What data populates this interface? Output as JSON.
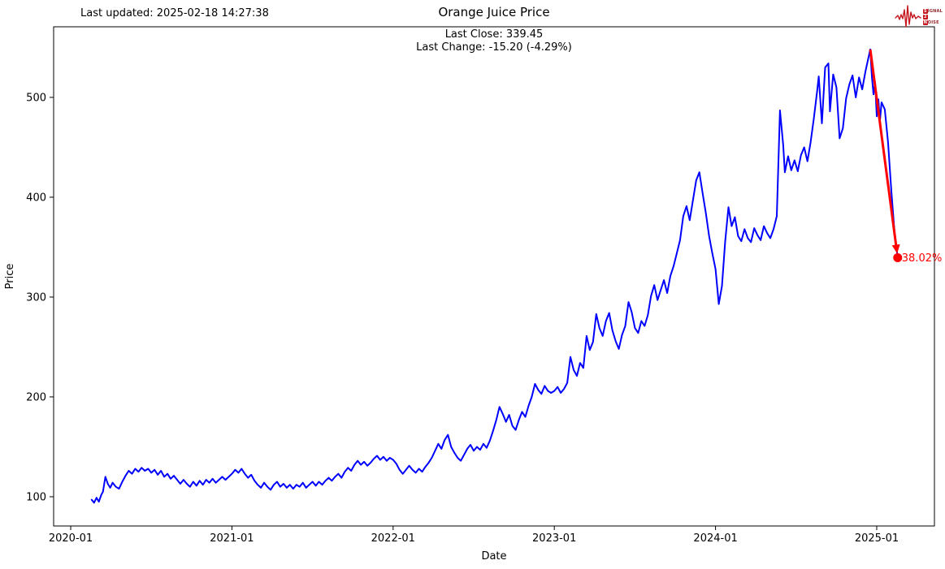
{
  "header": {
    "last_updated": "Last updated: 2025-02-18 14:27:38",
    "title": "Orange Juice  Price",
    "subtitle_line1": "Last Close: 339.45",
    "subtitle_line2": "Last Change: -15.20 (-4.29%)"
  },
  "logo": {
    "color": "#c4161c",
    "text_color": "#93282c",
    "rows": [
      {
        "boxed": "S",
        "rest": "IGNAL"
      },
      {
        "boxed": "2",
        "rest": ""
      },
      {
        "boxed": "N",
        "rest": "OISE"
      }
    ]
  },
  "chart_data": {
    "type": "line",
    "title": "Orange Juice  Price",
    "xlabel": "Date",
    "ylabel": "Price",
    "grid": false,
    "legend": "none",
    "xlim": [
      2019.894,
      2025.358
    ],
    "ylim": [
      70.7,
      570.7
    ],
    "x_ticks": [
      {
        "v": 2020.0,
        "label": "2020-01"
      },
      {
        "v": 2021.0,
        "label": "2021-01"
      },
      {
        "v": 2022.0,
        "label": "2022-01"
      },
      {
        "v": 2023.0,
        "label": "2023-01"
      },
      {
        "v": 2024.0,
        "label": "2024-01"
      },
      {
        "v": 2025.0,
        "label": "2025-01"
      }
    ],
    "y_ticks": [
      {
        "v": 100,
        "label": "100"
      },
      {
        "v": 200,
        "label": "200"
      },
      {
        "v": 300,
        "label": "300"
      },
      {
        "v": 400,
        "label": "400"
      },
      {
        "v": 500,
        "label": "500"
      }
    ],
    "line_color": "#0000ff",
    "last_close": 339.45,
    "last_change": -15.2,
    "last_change_pct": -4.29,
    "annotation": {
      "from": [
        2024.96,
        548
      ],
      "to": [
        2025.13,
        339.45
      ],
      "label": "38.02%",
      "color": "#ff0000"
    },
    "series": [
      {
        "name": "Price",
        "points": [
          [
            2020.13,
            97
          ],
          [
            2020.145,
            94
          ],
          [
            2020.16,
            99
          ],
          [
            2020.175,
            95
          ],
          [
            2020.19,
            102
          ],
          [
            2020.2,
            105
          ],
          [
            2020.215,
            120
          ],
          [
            2020.23,
            113
          ],
          [
            2020.245,
            109
          ],
          [
            2020.26,
            114
          ],
          [
            2020.28,
            110
          ],
          [
            2020.3,
            108
          ],
          [
            2020.32,
            115
          ],
          [
            2020.34,
            121
          ],
          [
            2020.36,
            126
          ],
          [
            2020.38,
            123
          ],
          [
            2020.4,
            128
          ],
          [
            2020.42,
            125
          ],
          [
            2020.44,
            129
          ],
          [
            2020.46,
            126
          ],
          [
            2020.48,
            128
          ],
          [
            2020.5,
            124
          ],
          [
            2020.52,
            127
          ],
          [
            2020.54,
            122
          ],
          [
            2020.56,
            126
          ],
          [
            2020.58,
            120
          ],
          [
            2020.6,
            123
          ],
          [
            2020.62,
            118
          ],
          [
            2020.64,
            121
          ],
          [
            2020.66,
            117
          ],
          [
            2020.68,
            113
          ],
          [
            2020.7,
            117
          ],
          [
            2020.72,
            113
          ],
          [
            2020.74,
            110
          ],
          [
            2020.76,
            115
          ],
          [
            2020.78,
            111
          ],
          [
            2020.8,
            116
          ],
          [
            2020.82,
            112
          ],
          [
            2020.84,
            117
          ],
          [
            2020.86,
            114
          ],
          [
            2020.88,
            118
          ],
          [
            2020.9,
            114
          ],
          [
            2020.92,
            117
          ],
          [
            2020.94,
            120
          ],
          [
            2020.96,
            117
          ],
          [
            2020.98,
            120
          ],
          [
            2021.0,
            123
          ],
          [
            2021.02,
            127
          ],
          [
            2021.04,
            124
          ],
          [
            2021.06,
            128
          ],
          [
            2021.08,
            123
          ],
          [
            2021.1,
            119
          ],
          [
            2021.12,
            122
          ],
          [
            2021.14,
            116
          ],
          [
            2021.16,
            112
          ],
          [
            2021.18,
            109
          ],
          [
            2021.2,
            114
          ],
          [
            2021.22,
            110
          ],
          [
            2021.24,
            107
          ],
          [
            2021.26,
            112
          ],
          [
            2021.28,
            115
          ],
          [
            2021.3,
            110
          ],
          [
            2021.32,
            113
          ],
          [
            2021.34,
            109
          ],
          [
            2021.36,
            112
          ],
          [
            2021.38,
            108
          ],
          [
            2021.4,
            112
          ],
          [
            2021.42,
            110
          ],
          [
            2021.44,
            114
          ],
          [
            2021.46,
            109
          ],
          [
            2021.48,
            112
          ],
          [
            2021.5,
            115
          ],
          [
            2021.52,
            111
          ],
          [
            2021.54,
            115
          ],
          [
            2021.56,
            112
          ],
          [
            2021.58,
            116
          ],
          [
            2021.6,
            119
          ],
          [
            2021.62,
            116
          ],
          [
            2021.64,
            120
          ],
          [
            2021.66,
            123
          ],
          [
            2021.68,
            119
          ],
          [
            2021.7,
            125
          ],
          [
            2021.72,
            129
          ],
          [
            2021.74,
            126
          ],
          [
            2021.76,
            132
          ],
          [
            2021.78,
            136
          ],
          [
            2021.8,
            132
          ],
          [
            2021.82,
            135
          ],
          [
            2021.84,
            131
          ],
          [
            2021.86,
            134
          ],
          [
            2021.88,
            138
          ],
          [
            2021.9,
            141
          ],
          [
            2021.92,
            137
          ],
          [
            2021.94,
            140
          ],
          [
            2021.96,
            136
          ],
          [
            2021.98,
            139
          ],
          [
            2022.0,
            137
          ],
          [
            2022.02,
            133
          ],
          [
            2022.04,
            127
          ],
          [
            2022.06,
            123
          ],
          [
            2022.08,
            127
          ],
          [
            2022.1,
            131
          ],
          [
            2022.12,
            127
          ],
          [
            2022.14,
            124
          ],
          [
            2022.16,
            128
          ],
          [
            2022.18,
            125
          ],
          [
            2022.2,
            130
          ],
          [
            2022.22,
            134
          ],
          [
            2022.24,
            139
          ],
          [
            2022.26,
            146
          ],
          [
            2022.28,
            153
          ],
          [
            2022.3,
            148
          ],
          [
            2022.32,
            157
          ],
          [
            2022.34,
            162
          ],
          [
            2022.36,
            150
          ],
          [
            2022.38,
            144
          ],
          [
            2022.4,
            139
          ],
          [
            2022.42,
            136
          ],
          [
            2022.44,
            142
          ],
          [
            2022.46,
            148
          ],
          [
            2022.48,
            152
          ],
          [
            2022.5,
            146
          ],
          [
            2022.52,
            150
          ],
          [
            2022.54,
            147
          ],
          [
            2022.56,
            153
          ],
          [
            2022.58,
            149
          ],
          [
            2022.6,
            156
          ],
          [
            2022.62,
            166
          ],
          [
            2022.64,
            177
          ],
          [
            2022.66,
            190
          ],
          [
            2022.68,
            183
          ],
          [
            2022.7,
            175
          ],
          [
            2022.72,
            182
          ],
          [
            2022.74,
            171
          ],
          [
            2022.76,
            167
          ],
          [
            2022.78,
            177
          ],
          [
            2022.8,
            185
          ],
          [
            2022.82,
            180
          ],
          [
            2022.84,
            191
          ],
          [
            2022.86,
            200
          ],
          [
            2022.88,
            213
          ],
          [
            2022.9,
            207
          ],
          [
            2022.92,
            203
          ],
          [
            2022.94,
            211
          ],
          [
            2022.96,
            206
          ],
          [
            2022.98,
            204
          ],
          [
            2023.0,
            206
          ],
          [
            2023.02,
            210
          ],
          [
            2023.04,
            204
          ],
          [
            2023.06,
            208
          ],
          [
            2023.08,
            214
          ],
          [
            2023.1,
            240
          ],
          [
            2023.12,
            227
          ],
          [
            2023.14,
            221
          ],
          [
            2023.16,
            234
          ],
          [
            2023.18,
            229
          ],
          [
            2023.2,
            261
          ],
          [
            2023.22,
            247
          ],
          [
            2023.24,
            255
          ],
          [
            2023.26,
            283
          ],
          [
            2023.28,
            269
          ],
          [
            2023.3,
            261
          ],
          [
            2023.32,
            276
          ],
          [
            2023.34,
            284
          ],
          [
            2023.36,
            267
          ],
          [
            2023.38,
            256
          ],
          [
            2023.4,
            248
          ],
          [
            2023.42,
            262
          ],
          [
            2023.44,
            271
          ],
          [
            2023.46,
            295
          ],
          [
            2023.48,
            285
          ],
          [
            2023.5,
            269
          ],
          [
            2023.52,
            264
          ],
          [
            2023.54,
            276
          ],
          [
            2023.56,
            271
          ],
          [
            2023.58,
            282
          ],
          [
            2023.6,
            301
          ],
          [
            2023.62,
            312
          ],
          [
            2023.64,
            297
          ],
          [
            2023.66,
            307
          ],
          [
            2023.68,
            317
          ],
          [
            2023.7,
            304
          ],
          [
            2023.72,
            321
          ],
          [
            2023.74,
            331
          ],
          [
            2023.76,
            344
          ],
          [
            2023.78,
            357
          ],
          [
            2023.8,
            381
          ],
          [
            2023.82,
            391
          ],
          [
            2023.84,
            377
          ],
          [
            2023.86,
            397
          ],
          [
            2023.88,
            417
          ],
          [
            2023.9,
            425
          ],
          [
            2023.92,
            404
          ],
          [
            2023.94,
            384
          ],
          [
            2023.96,
            361
          ],
          [
            2023.98,
            344
          ],
          [
            2024.0,
            328
          ],
          [
            2024.02,
            293
          ],
          [
            2024.04,
            311
          ],
          [
            2024.06,
            356
          ],
          [
            2024.08,
            390
          ],
          [
            2024.1,
            371
          ],
          [
            2024.12,
            380
          ],
          [
            2024.14,
            361
          ],
          [
            2024.16,
            356
          ],
          [
            2024.18,
            368
          ],
          [
            2024.2,
            359
          ],
          [
            2024.22,
            355
          ],
          [
            2024.24,
            369
          ],
          [
            2024.26,
            362
          ],
          [
            2024.28,
            357
          ],
          [
            2024.3,
            371
          ],
          [
            2024.32,
            364
          ],
          [
            2024.34,
            359
          ],
          [
            2024.36,
            368
          ],
          [
            2024.38,
            381
          ],
          [
            2024.4,
            487
          ],
          [
            2024.42,
            452
          ],
          [
            2024.43,
            425
          ],
          [
            2024.45,
            441
          ],
          [
            2024.47,
            427
          ],
          [
            2024.49,
            437
          ],
          [
            2024.51,
            426
          ],
          [
            2024.53,
            442
          ],
          [
            2024.55,
            450
          ],
          [
            2024.57,
            436
          ],
          [
            2024.59,
            455
          ],
          [
            2024.61,
            479
          ],
          [
            2024.63,
            506
          ],
          [
            2024.64,
            521
          ],
          [
            2024.66,
            474
          ],
          [
            2024.68,
            530
          ],
          [
            2024.7,
            534
          ],
          [
            2024.71,
            486
          ],
          [
            2024.73,
            523
          ],
          [
            2024.75,
            510
          ],
          [
            2024.77,
            459
          ],
          [
            2024.79,
            469
          ],
          [
            2024.81,
            499
          ],
          [
            2024.83,
            513
          ],
          [
            2024.85,
            522
          ],
          [
            2024.87,
            500
          ],
          [
            2024.89,
            520
          ],
          [
            2024.91,
            508
          ],
          [
            2024.93,
            526
          ],
          [
            2024.96,
            548
          ],
          [
            2024.97,
            521
          ],
          [
            2024.98,
            503
          ],
          [
            2024.99,
            515
          ],
          [
            2025.0,
            481
          ],
          [
            2025.01,
            498
          ],
          [
            2025.02,
            476
          ],
          [
            2025.03,
            495
          ],
          [
            2025.05,
            488
          ],
          [
            2025.07,
            455
          ],
          [
            2025.09,
            408
          ],
          [
            2025.11,
            366
          ],
          [
            2025.13,
            339.45
          ]
        ]
      }
    ]
  }
}
